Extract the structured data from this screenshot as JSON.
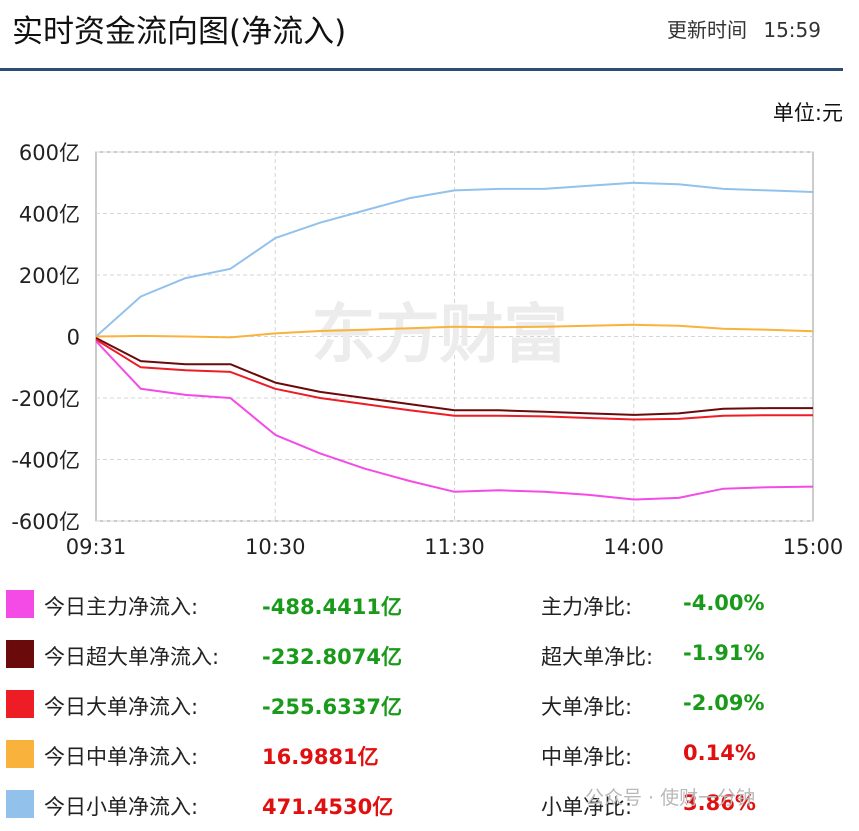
{
  "header": {
    "title": "实时资金流向图(净流入)",
    "update_label": "更新时间",
    "update_time": "15:59"
  },
  "unit_label": "单位:元",
  "watermark": "东方财富",
  "wechat_watermark": "公众号 · 使财一分钟",
  "colors": {
    "main": "#f54be6",
    "super": "#6b0a0a",
    "large": "#ee1c25",
    "medium": "#f9b33c",
    "small": "#92c2ec",
    "negative_text": "#1a9a1a",
    "positive_text": "#e01010",
    "header_rule": "#2d4e72"
  },
  "chart_data": {
    "type": "line",
    "ylim": [
      -600,
      600
    ],
    "yticks": [
      "600亿",
      "400亿",
      "200亿",
      "0",
      "-200亿",
      "-400亿",
      "-600亿"
    ],
    "ytick_values": [
      600,
      400,
      200,
      0,
      -200,
      -400,
      -600
    ],
    "x": [
      "09:31",
      "09:45",
      "10:00",
      "10:15",
      "10:30",
      "10:45",
      "11:00",
      "11:15",
      "11:30",
      "13:15",
      "13:30",
      "13:45",
      "14:00",
      "14:15",
      "14:30",
      "14:45",
      "15:00"
    ],
    "xticks": [
      "09:31",
      "10:30",
      "11:30",
      "14:00",
      "15:00"
    ],
    "xtick_index": [
      0,
      4,
      8,
      12,
      16
    ],
    "grid": true,
    "series": [
      {
        "key": "small",
        "color": "#92c2ec",
        "values": [
          0,
          130,
          190,
          220,
          320,
          370,
          410,
          450,
          475,
          480,
          480,
          490,
          500,
          495,
          480,
          475,
          470
        ]
      },
      {
        "key": "medium",
        "color": "#f9b33c",
        "values": [
          0,
          2,
          0,
          -3,
          10,
          18,
          22,
          27,
          32,
          30,
          32,
          35,
          38,
          35,
          25,
          22,
          17
        ]
      },
      {
        "key": "super",
        "color": "#6b0a0a",
        "values": [
          -5,
          -80,
          -90,
          -90,
          -150,
          -180,
          -200,
          -220,
          -240,
          -240,
          -245,
          -250,
          -255,
          -250,
          -235,
          -233,
          -233
        ]
      },
      {
        "key": "large",
        "color": "#ee1c25",
        "values": [
          -10,
          -100,
          -110,
          -115,
          -170,
          -200,
          -220,
          -240,
          -258,
          -258,
          -260,
          -265,
          -270,
          -268,
          -258,
          -256,
          -256
        ]
      },
      {
        "key": "main",
        "color": "#f54be6",
        "values": [
          -15,
          -170,
          -190,
          -200,
          -320,
          -380,
          -430,
          -470,
          -505,
          -500,
          -505,
          -515,
          -530,
          -525,
          -495,
          -490,
          -488
        ]
      }
    ]
  },
  "legend": [
    {
      "key": "main",
      "name": "今日主力净流入:",
      "value": "-488.4411亿",
      "ratio_name": "主力净比:",
      "ratio": "-4.00%",
      "sign": "neg"
    },
    {
      "key": "super",
      "name": "今日超大单净流入:",
      "value": "-232.8074亿",
      "ratio_name": "超大单净比:",
      "ratio": "-1.91%",
      "sign": "neg"
    },
    {
      "key": "large",
      "name": "今日大单净流入:",
      "value": "-255.6337亿",
      "ratio_name": "大单净比:",
      "ratio": "-2.09%",
      "sign": "neg"
    },
    {
      "key": "medium",
      "name": "今日中单净流入:",
      "value": "16.9881亿",
      "ratio_name": "中单净比:",
      "ratio": "0.14%",
      "sign": "pos"
    },
    {
      "key": "small",
      "name": "今日小单净流入:",
      "value": "471.4530亿",
      "ratio_name": "小单净比:",
      "ratio": "3.86%",
      "sign": "pos"
    }
  ]
}
